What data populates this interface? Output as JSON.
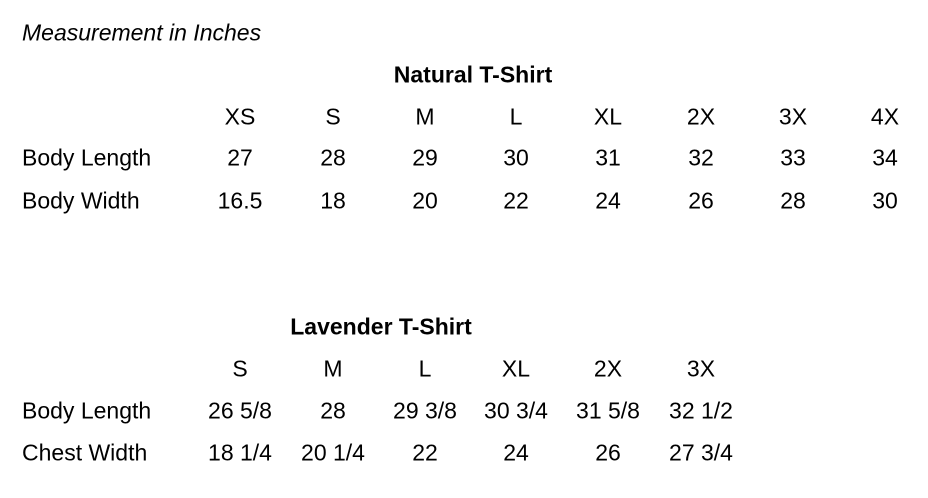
{
  "caption": "Measurement in Inches",
  "tables": [
    {
      "title": "Natural T-Shirt",
      "sizes": [
        "XS",
        "S",
        "M",
        "L",
        "XL",
        "2X",
        "3X",
        "4X"
      ],
      "rows": [
        {
          "label": "Body Length",
          "values": [
            "27",
            "28",
            "29",
            "30",
            "31",
            "32",
            "33",
            "34"
          ]
        },
        {
          "label": "Body Width",
          "values": [
            "16.5",
            "18",
            "20",
            "22",
            "24",
            "26",
            "28",
            "30"
          ]
        }
      ]
    },
    {
      "title": "Lavender T-Shirt",
      "sizes": [
        "S",
        "M",
        "L",
        "XL",
        "2X",
        "3X"
      ],
      "rows": [
        {
          "label": "Body Length",
          "values": [
            "26 5/8",
            "28",
            "29 3/8",
            "30 3/4",
            "31 5/8",
            "32 1/2"
          ]
        },
        {
          "label": "Chest Width",
          "values": [
            "18 1/4",
            "20 1/4",
            "22",
            "24",
            "26",
            "27 3/4"
          ]
        }
      ]
    }
  ]
}
